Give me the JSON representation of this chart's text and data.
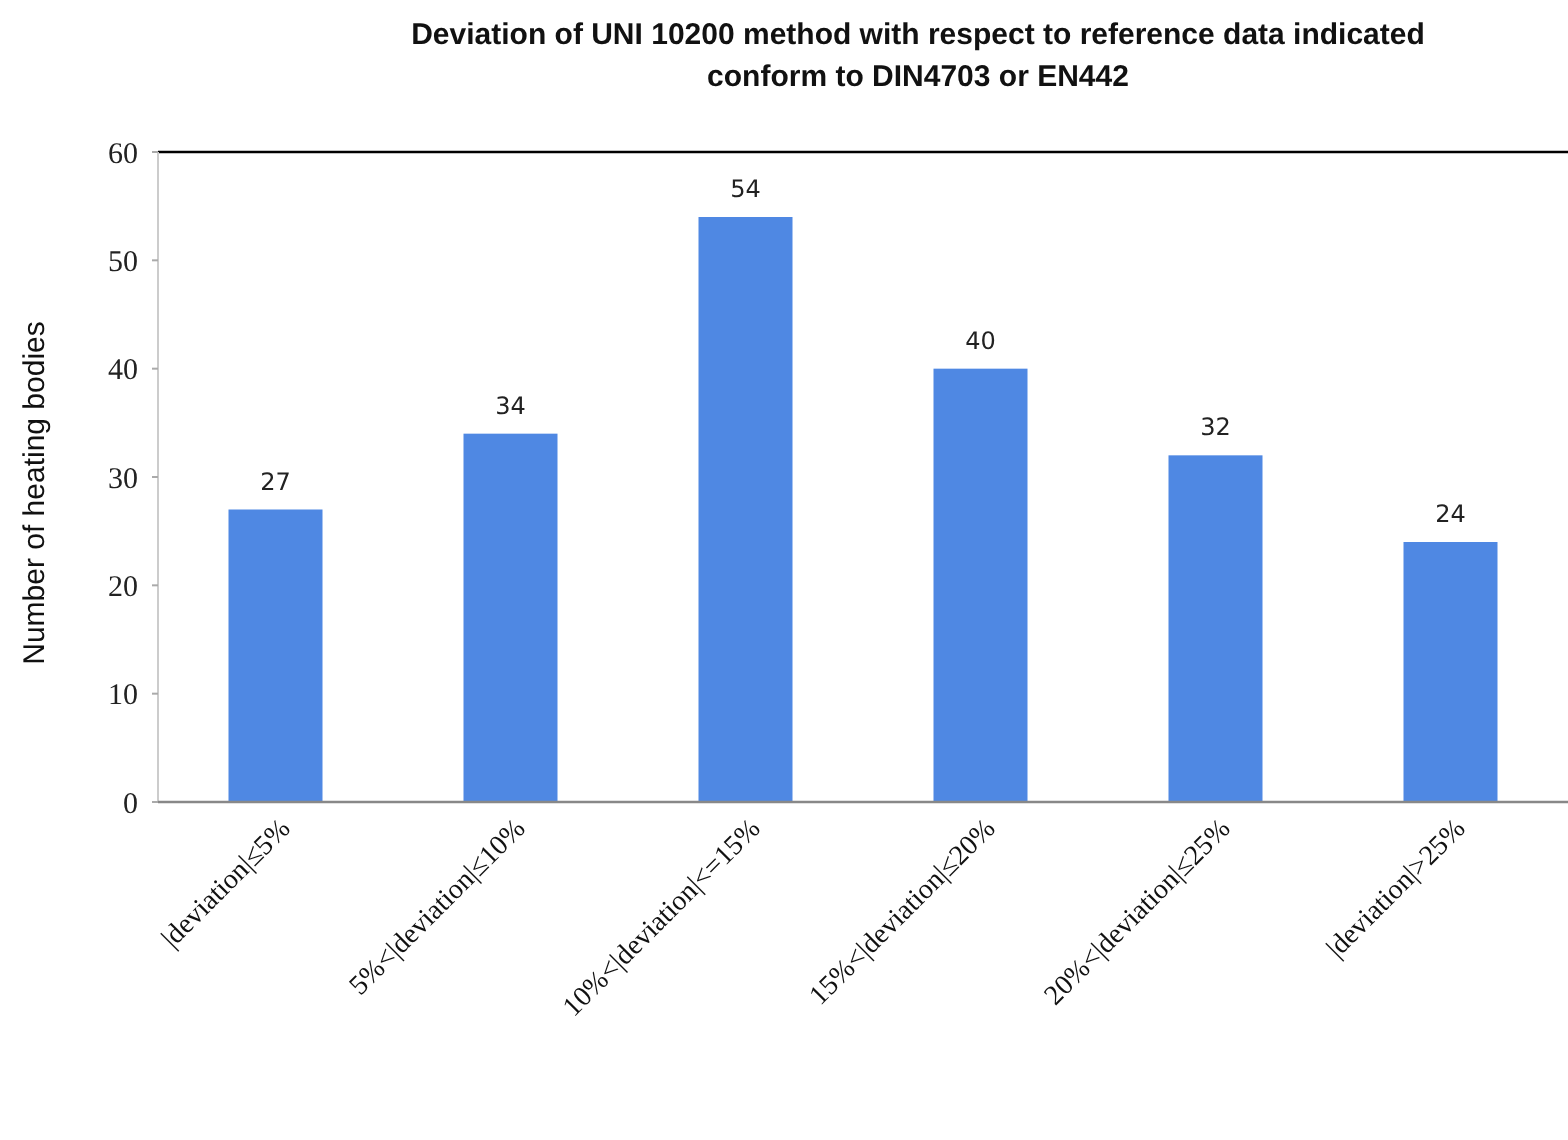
{
  "chart_data": {
    "type": "bar",
    "title": "Deviation of UNI 10200 method with respect to reference data indicated conform to DIN4703 or EN442",
    "ylabel": "Number of heating bodies",
    "categories": [
      "|deviation|≤5%",
      "5%<|deviation|≤10%",
      "10%<|deviation|<=15%",
      "15%<|deviation|≤20%",
      "20%<|deviation|≤25%",
      "|deviation|>25%"
    ],
    "values": [
      27,
      34,
      54,
      40,
      32,
      24
    ],
    "color": "#4f88e3",
    "ylim": [
      0,
      60
    ],
    "yticks": [
      0,
      10,
      20,
      30,
      40,
      50,
      60
    ],
    "data_labels": true
  }
}
